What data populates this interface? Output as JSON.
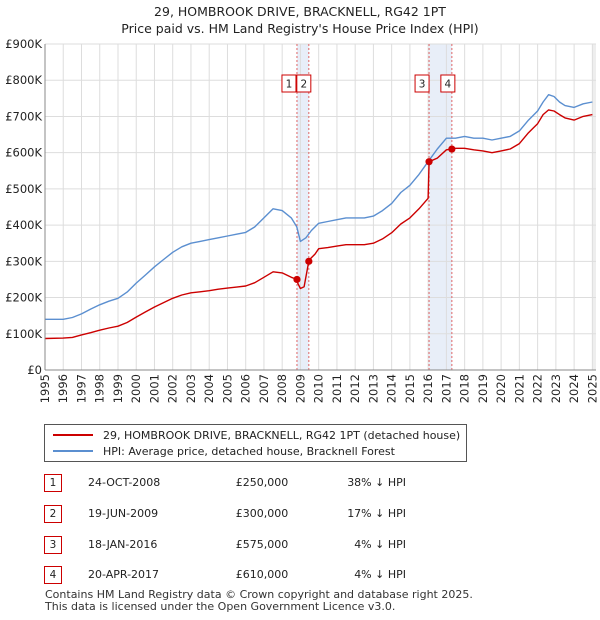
{
  "title_line1": "29, HOMBROOK DRIVE, BRACKNELL, RG42 1PT",
  "title_line2": "Price paid vs. HM Land Registry's House Price Index (HPI)",
  "legend": {
    "property": "29, HOMBROOK DRIVE, BRACKNELL, RG42 1PT (detached house)",
    "hpi": "HPI: Average price, detached house, Bracknell Forest"
  },
  "sales": [
    {
      "num": "1",
      "date": "24-OCT-2008",
      "price": "£250,000",
      "hpi": "38% ↓ HPI"
    },
    {
      "num": "2",
      "date": "19-JUN-2009",
      "price": "£300,000",
      "hpi": "17% ↓ HPI"
    },
    {
      "num": "3",
      "date": "18-JAN-2016",
      "price": "£575,000",
      "hpi": "4% ↓ HPI"
    },
    {
      "num": "4",
      "date": "20-APR-2017",
      "price": "£610,000",
      "hpi": "4% ↓ HPI"
    }
  ],
  "footer": {
    "line1": "Contains HM Land Registry data © Crown copyright and database right 2025.",
    "line2": "This data is licensed under the Open Government Licence v3.0."
  },
  "colors": {
    "property": "#cc0000",
    "hpi": "#5b8fd0",
    "grid": "#dddddd",
    "band": "#e8eef8",
    "marker_line": "#e06666"
  },
  "chart_data": {
    "type": "line",
    "title": "Price paid vs. HM Land Registry's House Price Index (HPI)",
    "xlabel": "",
    "ylabel": "",
    "xlim": [
      1995,
      2025.2
    ],
    "ylim": [
      0,
      900000
    ],
    "y_ticks": [
      0,
      100000,
      200000,
      300000,
      400000,
      500000,
      600000,
      700000,
      800000,
      900000
    ],
    "y_tick_labels": [
      "£0",
      "£100K",
      "£200K",
      "£300K",
      "£400K",
      "£500K",
      "£600K",
      "£700K",
      "£800K",
      "£900K"
    ],
    "x_ticks": [
      1995,
      1996,
      1997,
      1998,
      1999,
      2000,
      2001,
      2002,
      2003,
      2004,
      2005,
      2006,
      2007,
      2008,
      2009,
      2010,
      2011,
      2012,
      2013,
      2014,
      2015,
      2016,
      2017,
      2018,
      2019,
      2020,
      2021,
      2022,
      2023,
      2024,
      2025
    ],
    "x_tick_labels": [
      "1995",
      "1996",
      "1997",
      "1998",
      "1999",
      "2000",
      "2001",
      "2002",
      "2003",
      "2004",
      "2005",
      "2006",
      "2007",
      "2008",
      "2009",
      "2010",
      "2011",
      "2012",
      "2013",
      "2014",
      "2015",
      "2016",
      "2017",
      "2018",
      "2019",
      "2020",
      "2021",
      "2022",
      "2023",
      "2024",
      "2025"
    ],
    "series": [
      {
        "name": "HPI: Average price, detached house, Bracknell Forest",
        "x": [
          1995.0,
          1996.0,
          1996.5,
          1997.0,
          1997.5,
          1998.0,
          1998.5,
          1999.0,
          1999.5,
          2000.0,
          2000.5,
          2001.0,
          2001.5,
          2002.0,
          2002.5,
          2003.0,
          2003.5,
          2004.0,
          2004.5,
          2005.0,
          2005.5,
          2006.0,
          2006.5,
          2007.0,
          2007.5,
          2008.0,
          2008.5,
          2008.8,
          2009.0,
          2009.3,
          2009.6,
          2010.0,
          2010.5,
          2011.0,
          2011.5,
          2012.0,
          2012.5,
          2013.0,
          2013.5,
          2014.0,
          2014.5,
          2015.0,
          2015.5,
          2016.0,
          2016.5,
          2017.0,
          2017.5,
          2018.0,
          2018.5,
          2019.0,
          2019.5,
          2020.0,
          2020.5,
          2021.0,
          2021.5,
          2022.0,
          2022.3,
          2022.6,
          2022.9,
          2023.2,
          2023.5,
          2024.0,
          2024.5,
          2025.0
        ],
        "values": [
          140000,
          140000,
          145000,
          155000,
          168000,
          180000,
          190000,
          198000,
          215000,
          240000,
          262000,
          285000,
          305000,
          325000,
          340000,
          350000,
          355000,
          360000,
          365000,
          370000,
          375000,
          380000,
          395000,
          420000,
          445000,
          440000,
          420000,
          395000,
          355000,
          365000,
          385000,
          405000,
          410000,
          415000,
          420000,
          420000,
          420000,
          425000,
          440000,
          460000,
          490000,
          510000,
          540000,
          575000,
          610000,
          640000,
          640000,
          645000,
          640000,
          640000,
          635000,
          640000,
          645000,
          660000,
          690000,
          715000,
          740000,
          760000,
          755000,
          740000,
          730000,
          725000,
          735000,
          740000
        ]
      },
      {
        "name": "29, HOMBROOK DRIVE, BRACKNELL, RG42 1PT (detached house)",
        "x": [
          1995.0,
          1996.0,
          1996.5,
          1997.0,
          1997.5,
          1998.0,
          1998.5,
          1999.0,
          1999.5,
          2000.0,
          2000.5,
          2001.0,
          2001.5,
          2002.0,
          2002.5,
          2003.0,
          2003.5,
          2004.0,
          2004.5,
          2005.0,
          2005.5,
          2006.0,
          2006.5,
          2007.0,
          2007.5,
          2008.0,
          2008.5,
          2008.81,
          2008.85,
          2009.0,
          2009.2,
          2009.46,
          2009.5,
          2009.8,
          2010.0,
          2010.5,
          2011.0,
          2011.5,
          2012.0,
          2012.5,
          2013.0,
          2013.5,
          2014.0,
          2014.5,
          2015.0,
          2015.5,
          2016.0,
          2016.05,
          2016.5,
          2017.0,
          2017.3,
          2017.5,
          2018.0,
          2018.5,
          2019.0,
          2019.5,
          2020.0,
          2020.5,
          2021.0,
          2021.5,
          2022.0,
          2022.3,
          2022.6,
          2022.9,
          2023.2,
          2023.5,
          2024.0,
          2024.5,
          2025.0
        ],
        "values": [
          87000,
          88000,
          90000,
          97000,
          103000,
          110000,
          116000,
          121000,
          131000,
          146000,
          160000,
          174000,
          186000,
          198000,
          207000,
          213000,
          216000,
          219000,
          223000,
          226000,
          229000,
          232000,
          241000,
          256000,
          271000,
          268000,
          256000,
          250000,
          240000,
          225000,
          230000,
          300000,
          305000,
          320000,
          335000,
          338000,
          342000,
          346000,
          346000,
          346000,
          350000,
          362000,
          379000,
          403000,
          420000,
          445000,
          474000,
          575000,
          585000,
          608000,
          610000,
          612000,
          612000,
          608000,
          605000,
          600000,
          605000,
          610000,
          625000,
          655000,
          680000,
          705000,
          718000,
          715000,
          705000,
          696000,
          690000,
          700000,
          705000
        ]
      }
    ],
    "sales": [
      {
        "label": "1",
        "x": 2008.81,
        "price": 250000
      },
      {
        "label": "2",
        "x": 2009.46,
        "price": 300000
      },
      {
        "label": "3",
        "x": 2016.05,
        "price": 575000
      },
      {
        "label": "4",
        "x": 2017.3,
        "price": 610000
      }
    ]
  }
}
